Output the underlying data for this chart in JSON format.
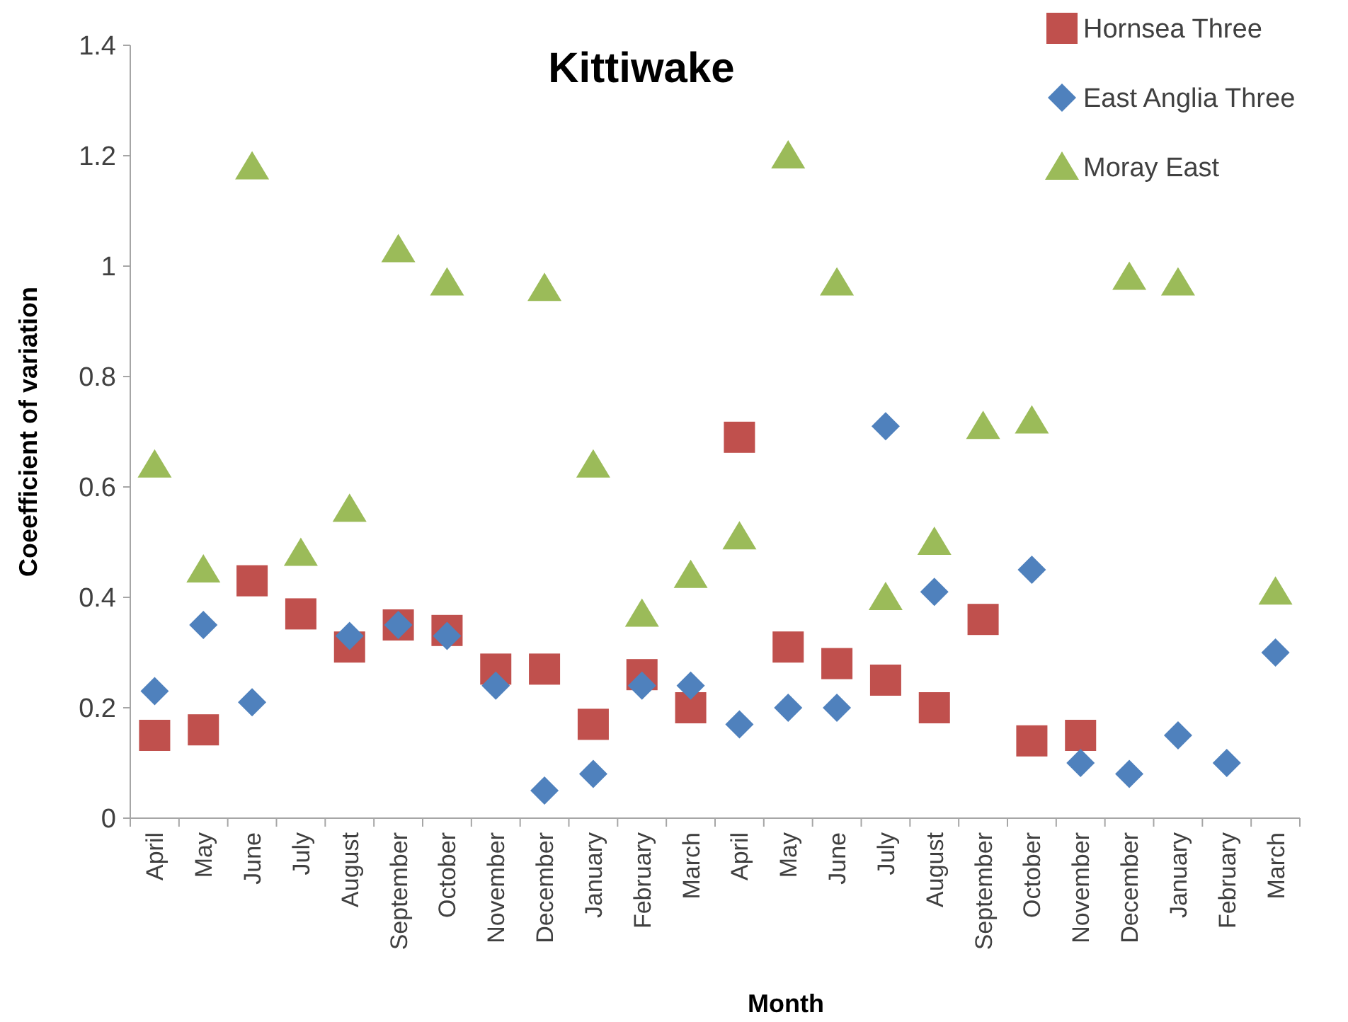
{
  "chart_data": {
    "type": "scatter",
    "title": "Kittiwake",
    "xlabel": "Month",
    "ylabel": "Coeefficient of variation",
    "categories": [
      "April",
      "May",
      "June",
      "July",
      "August",
      "September",
      "October",
      "November",
      "December",
      "January",
      "February",
      "March",
      "April",
      "May",
      "June",
      "July",
      "August",
      "September",
      "October",
      "November",
      "December",
      "January",
      "February",
      "March"
    ],
    "series": [
      {
        "name": "Hornsea Three",
        "color": "#c0504d",
        "marker": "square",
        "values": [
          0.15,
          0.16,
          0.43,
          0.37,
          0.31,
          0.35,
          0.34,
          0.27,
          0.27,
          0.17,
          0.26,
          0.2,
          0.69,
          0.31,
          0.28,
          0.25,
          0.2,
          0.36,
          0.14,
          0.15,
          null,
          null,
          null,
          null
        ]
      },
      {
        "name": "East Anglia Three",
        "color": "#4f81bd",
        "marker": "diamond",
        "values": [
          0.23,
          0.35,
          0.21,
          null,
          0.33,
          0.35,
          0.33,
          0.24,
          0.05,
          0.08,
          0.24,
          0.24,
          0.17,
          0.2,
          0.2,
          0.71,
          0.41,
          null,
          0.45,
          0.1,
          0.08,
          0.15,
          0.1,
          0.3
        ]
      },
      {
        "name": "Moray East",
        "color": "#9bbb59",
        "marker": "triangle",
        "values": [
          0.64,
          0.45,
          1.18,
          0.48,
          0.56,
          1.03,
          0.97,
          null,
          0.96,
          0.64,
          0.37,
          0.44,
          0.51,
          1.2,
          0.97,
          0.4,
          0.5,
          0.71,
          0.72,
          null,
          0.98,
          0.97,
          null,
          0.41
        ]
      }
    ],
    "ylim": [
      0,
      1.4
    ],
    "yticks": [
      0,
      {
        "value": 0.2,
        "label": "0.2"
      },
      {
        "value": 0.4,
        "label": "0.4"
      },
      {
        "value": 0.6,
        "label": "0.6"
      },
      {
        "value": 0.8,
        "label": "0.8"
      },
      1,
      {
        "value": 1.2,
        "label": "1.2"
      },
      {
        "value": 1.4,
        "label": "1.4"
      }
    ],
    "grid": false,
    "legend": "top right"
  }
}
